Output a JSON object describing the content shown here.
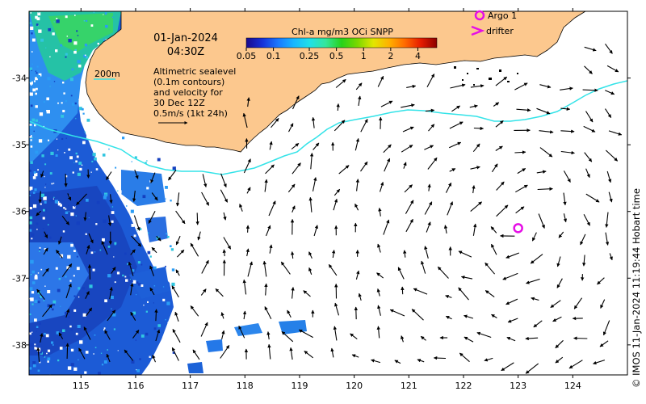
{
  "map": {
    "date": "01-Jan-2024",
    "time": "04:30Z",
    "colorbar": {
      "title": "Chl-a mg/m3 OCi SNPP",
      "ticks": [
        "0.05",
        "0.1",
        "0.25",
        "0.5",
        "1",
        "2",
        "4"
      ],
      "tick_values": [
        0.05,
        0.1,
        0.25,
        0.5,
        1,
        2,
        4
      ],
      "range": [
        0.05,
        6.5
      ],
      "scale": "log",
      "colors": [
        "#1a0a8c",
        "#1630d8",
        "#1a78ff",
        "#19b7ff",
        "#20e0e8",
        "#34e69a",
        "#27d21a",
        "#7ad800",
        "#e2e600",
        "#ffb000",
        "#ff6a00",
        "#e51b00",
        "#8b0000"
      ]
    },
    "depth_legend": {
      "label": "200m",
      "color": "#33e3e8"
    },
    "description_lines": [
      "Altimetric sealevel",
      "(0.1m contours)",
      "and velocity for",
      "30 Dec 12Z",
      "0.5m/s (1kt 24h)"
    ],
    "legend": {
      "argo_label": "Argo 1",
      "drifter_label": "drifter",
      "marker_color": "#e60ee6"
    },
    "x_ticks": [
      "115",
      "116",
      "117",
      "118",
      "119",
      "120",
      "121",
      "122",
      "123",
      "124"
    ],
    "y_ticks": [
      "-34",
      "-35",
      "-36",
      "-37",
      "-38"
    ],
    "x_tick_values": [
      115,
      116,
      117,
      118,
      119,
      120,
      121,
      122,
      123,
      124
    ],
    "y_tick_values": [
      -34,
      -35,
      -36,
      -37,
      -38
    ],
    "lon_range": [
      114.05,
      125.0
    ],
    "lat_range": [
      -38.45,
      -33.0
    ],
    "argo_float": {
      "lon": 123.0,
      "lat": -36.25
    },
    "land_color": "#fcc88e",
    "copyright": "© IMOS 11-Jan-2024 11:19:44 Hobart time"
  }
}
